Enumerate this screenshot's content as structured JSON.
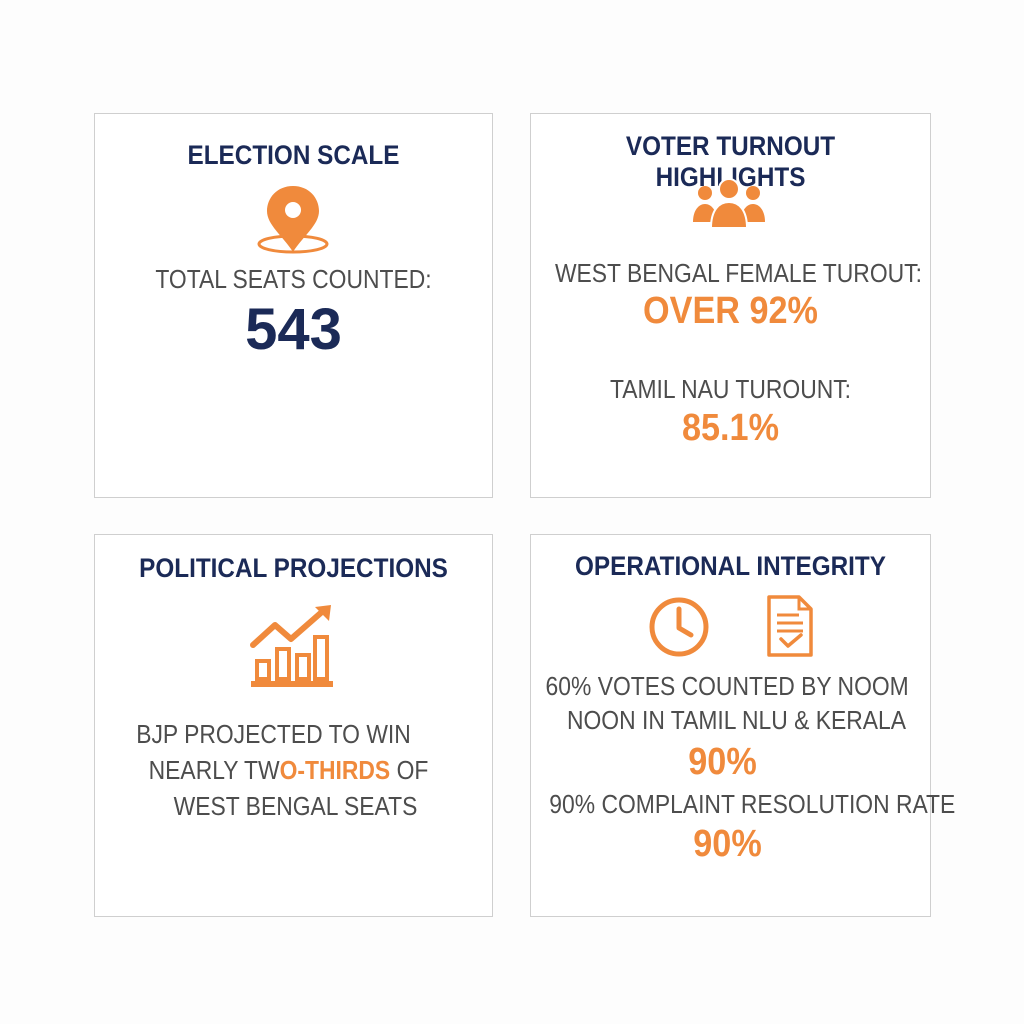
{
  "colors": {
    "navy": "#1b2a57",
    "orange": "#f08a3c",
    "text": "#4d4d4d",
    "border": "#cfcfcf"
  },
  "election": {
    "title": "ELECTION SCALE",
    "icon": "location-pin-icon",
    "label": "TOTAL SEATS COUNTED:",
    "value": "543"
  },
  "turnout": {
    "title": "VOTER TURNOUT HIGHLIGHTS",
    "icon": "people-group-icon",
    "wb_label": "WEST BENGAL FEMALE TUROUT:",
    "wb_value": "OVER 92%",
    "tn_label": "TAMIL NAU TUROUNT:",
    "tn_value": "85.1%"
  },
  "projections": {
    "title": "POLITICAL PROJECTIONS",
    "icon": "bar-chart-trend-icon",
    "line1": "BJP PROJECTED TO WIN",
    "line2_pre": "NEARLY TW",
    "line2_highlight": "O-THIRDS",
    "line2_post": " OF",
    "line3": "WEST BENGAL SEATS"
  },
  "integrity": {
    "title": "OPERATIONAL INTEGRITY",
    "icons": [
      "clock-icon",
      "document-check-icon"
    ],
    "line1": "60% VOTES COUNTED BY NOOM",
    "line2": "NOON IN TAMIL NLU & KERALA",
    "value1": "90%",
    "line3": "90% COMPLAINT RESOLUTION RATE",
    "value2": "90%"
  }
}
